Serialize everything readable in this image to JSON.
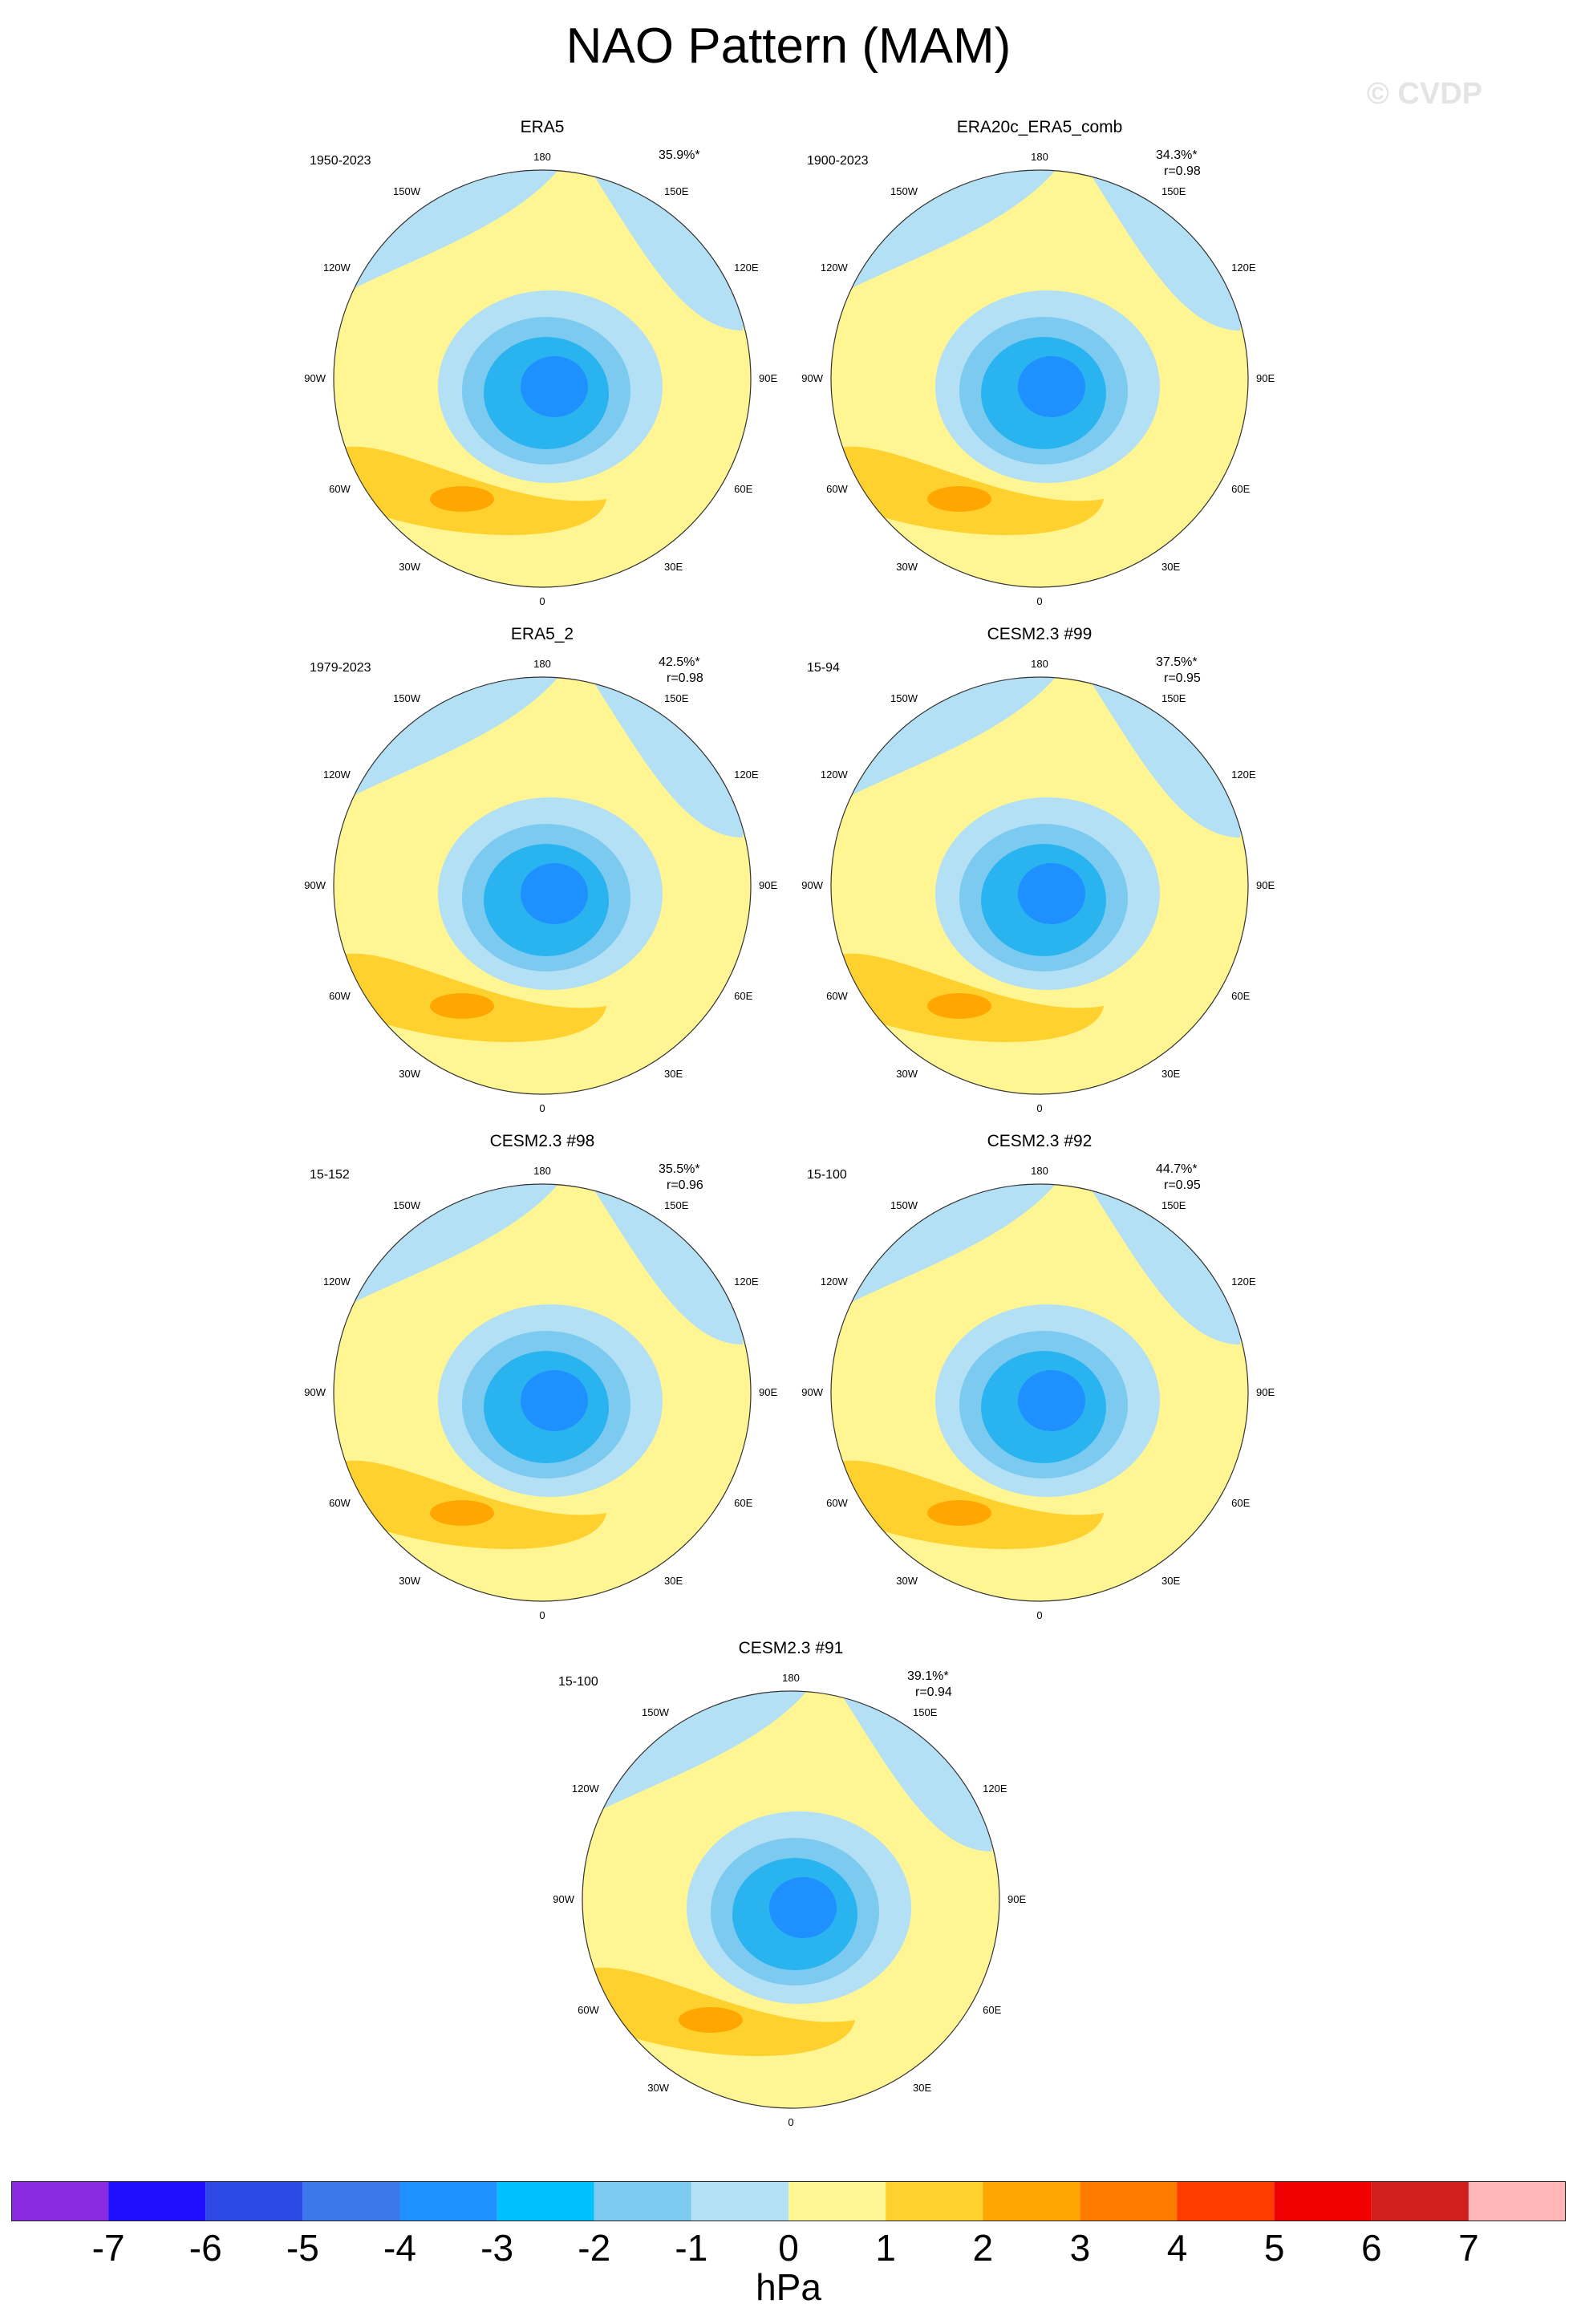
{
  "title": "NAO Pattern (MAM)",
  "watermark": "© CVDP",
  "colors": {
    "ocean_neg1": "#b3e0f5",
    "neg2": "#7ccaf0",
    "neg3": "#29b4f0",
    "neg4": "#1e90ff",
    "pos0": "#fff693",
    "pos1": "#ffd12e",
    "pos2": "#ffa700"
  },
  "panels": [
    {
      "title": "ERA5",
      "period": "1950-2023",
      "pct": "35.9%*",
      "r": ""
    },
    {
      "title": "ERA20c_ERA5_comb",
      "period": "1900-2023",
      "pct": "34.3%*",
      "r": "r=0.98"
    },
    {
      "title": "ERA5_2",
      "period": "1979-2023",
      "pct": "42.5%*",
      "r": "r=0.98"
    },
    {
      "title": "CESM2.3 #99",
      "period": "15-94",
      "pct": "37.5%*",
      "r": "r=0.95"
    },
    {
      "title": "CESM2.3 #98",
      "period": "15-152",
      "pct": "35.5%*",
      "r": "r=0.96"
    },
    {
      "title": "CESM2.3 #92",
      "period": "15-100",
      "pct": "44.7%*",
      "r": "r=0.95"
    },
    {
      "title": "CESM2.3 #91",
      "period": "15-100",
      "pct": "39.1%*",
      "r": "r=0.94"
    }
  ],
  "lon_labels": {
    "l180": "180",
    "l150w": "150W",
    "l150e": "150E",
    "l120w": "120W",
    "l120e": "120E",
    "l90w": "90W",
    "l90e": "90E",
    "l60w": "60W",
    "l60e": "60E",
    "l30w": "30W",
    "l30e": "30E",
    "l0": "0"
  },
  "colorbar": {
    "colors": [
      "#8a2be2",
      "#1e10ff",
      "#2e4ae6",
      "#3c78ea",
      "#1e90ff",
      "#00c0ff",
      "#7ccaf0",
      "#b3e0f5",
      "#fff693",
      "#ffd12e",
      "#ffa700",
      "#ff7b00",
      "#ff3b00",
      "#f00000",
      "#d31e1e",
      "#ffb6b6"
    ],
    "ticks": [
      "-7",
      "-6",
      "-5",
      "-4",
      "-3",
      "-2",
      "-1",
      "0",
      "1",
      "2",
      "3",
      "4",
      "5",
      "6",
      "7"
    ],
    "unit": "hPa"
  }
}
